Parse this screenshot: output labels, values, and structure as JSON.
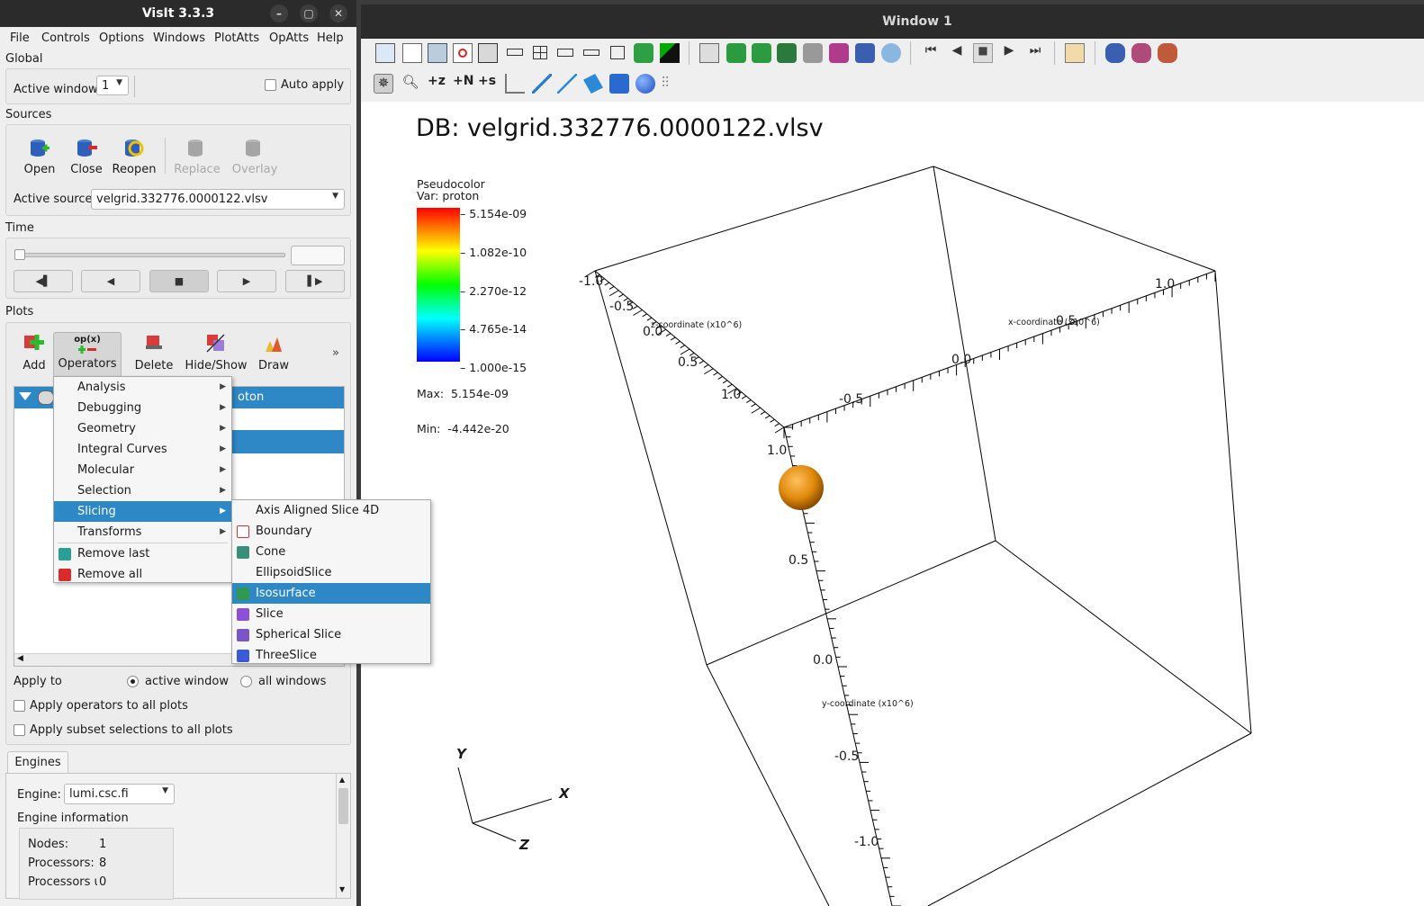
{
  "app": {
    "title": "VisIt 3.3.3",
    "win_min": "–",
    "win_max": "▢",
    "win_close": "✕"
  },
  "menubar": [
    "File",
    "Controls",
    "Options",
    "Windows",
    "PlotAtts",
    "OpAtts",
    "Help"
  ],
  "global": {
    "label": "Global",
    "active_window_label": "Active window",
    "active_window_value": "1",
    "auto_apply": "Auto apply"
  },
  "sources": {
    "label": "Sources",
    "buttons": [
      "Open",
      "Close",
      "Reopen",
      "Replace",
      "Overlay"
    ],
    "active_source_label": "Active source",
    "active_source_value": "velgrid.332776.0000122.vlsv"
  },
  "time": {
    "label": "Time",
    "slider_fraction": 0.0,
    "vcr": [
      "◀▌",
      "◀",
      "■",
      "▶",
      "▌▶"
    ]
  },
  "plots": {
    "label": "Plots",
    "toolbar": [
      "Add",
      "Operators",
      "Delete",
      "Hide/Show",
      "Draw"
    ],
    "more": "»",
    "op_icon_text": "op(x)",
    "list_row_text": "oton"
  },
  "operators_menu": [
    "Analysis",
    "Debugging",
    "Geometry",
    "Integral Curves",
    "Molecular",
    "Selection",
    "Slicing",
    "Transforms",
    "Remove last",
    "Remove all"
  ],
  "slicing_submenu": [
    "Axis Aligned Slice 4D",
    "Boundary",
    "Cone",
    "EllipsoidSlice",
    "Isosurface",
    "Slice",
    "Spherical Slice",
    "ThreeSlice"
  ],
  "apply": {
    "apply_to": "Apply to",
    "active_window": "active window",
    "all_windows": "all windows",
    "apply_ops_all": "Apply operators to all plots",
    "apply_subset_all": "Apply subset selections to all plots"
  },
  "engines": {
    "tab": "Engines",
    "engine_label": "Engine:",
    "engine_value": "lumi.csc.fi",
    "info_label": "Engine information",
    "nodes_label": "Nodes:",
    "nodes_value": "1",
    "procs_label": "Processors:",
    "procs_value": "8",
    "procs_u_label": "Processors u",
    "procs_u_value": "0"
  },
  "viewer": {
    "title": "Window 1",
    "db": "DB: velgrid.332776.0000122.vlsv",
    "legend": {
      "plot": "Pseudocolor",
      "var": "Var: proton",
      "ticks": [
        "5.154e-09",
        "1.082e-10",
        "2.270e-12",
        "4.765e-14",
        "1.000e-15"
      ],
      "max": "Max:  5.154e-09",
      "min": "Min:  -4.442e-20"
    },
    "x_axis_title": "x-coordinate (x10^6)",
    "y_axis_title": "y-coordinate (x10^6)",
    "z_axis_title": "z-coordinate (x10^6)",
    "x_ticks": [
      "-1.0",
      "-0.5",
      "0.0",
      "0.5",
      "1.0"
    ],
    "y_ticks": [
      "1.0",
      "0.5",
      "0.0",
      "-0.5",
      "-1.0"
    ],
    "z_ticks": [
      "-1.0",
      "-0.5",
      "0.0",
      "0.5",
      "1.0"
    ],
    "triad": {
      "x": "X",
      "y": "Y",
      "z": "Z"
    },
    "sphere_color": "#e08a0c"
  },
  "colors": {
    "accent": "#2e88c6",
    "titlebar": "#2b2b2b"
  }
}
